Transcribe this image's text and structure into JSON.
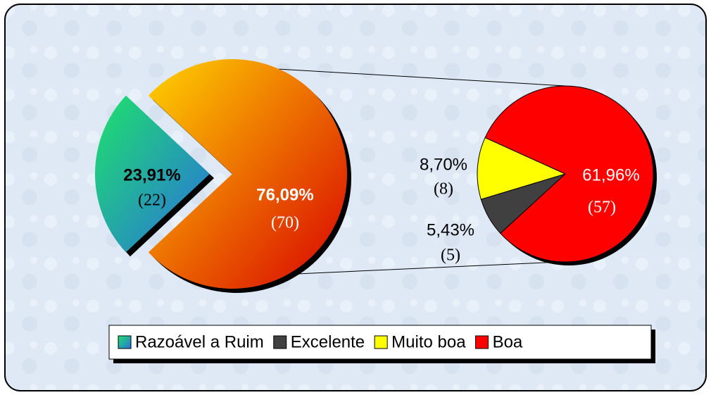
{
  "chart_data": {
    "type": "pie",
    "main": {
      "categories": [
        "Razoável a Ruim",
        null
      ],
      "values": [
        23.91,
        76.09
      ],
      "value_labels": [
        "23,91%",
        "76,09%"
      ],
      "counts": [
        22,
        70
      ],
      "count_labels": [
        "(22)",
        "(70)"
      ],
      "colors": [
        [
          "#1ee26a",
          "#2a6fe0"
        ],
        [
          "#ffd400",
          "#d80000"
        ]
      ]
    },
    "secondary": {
      "categories": [
        "Excelente",
        "Muito boa",
        "Boa"
      ],
      "values": [
        5.43,
        8.7,
        61.96
      ],
      "value_labels": [
        "5,43%",
        "8,70%",
        "61,96%"
      ],
      "counts": [
        5,
        8,
        57
      ],
      "count_labels": [
        "(5)",
        "(8)",
        "(57)"
      ],
      "colors": [
        "#404040",
        "#ffff00",
        "#ff0000"
      ]
    }
  }
}
